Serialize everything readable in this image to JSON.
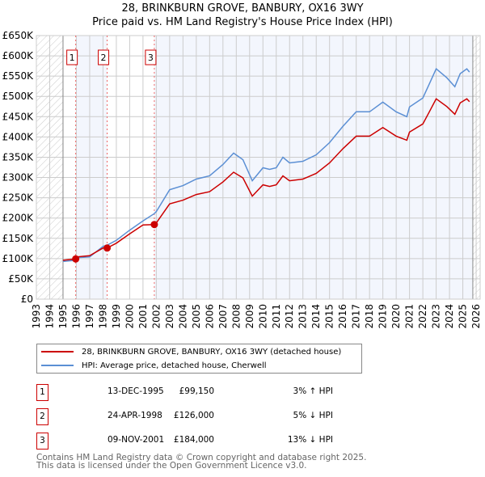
{
  "title_line1": "28, BRINKBURN GROVE, BANBURY, OX16 3WY",
  "title_line2": "Price paid vs. HM Land Registry's House Price Index (HPI)",
  "chart_data": {
    "type": "line",
    "xlim": [
      1993,
      2026.3
    ],
    "ylim": [
      0,
      650000
    ],
    "x_ticks": [
      1993,
      1994,
      1995,
      1996,
      1997,
      1998,
      1999,
      2000,
      2001,
      2002,
      2003,
      2004,
      2005,
      2006,
      2007,
      2008,
      2009,
      2010,
      2011,
      2012,
      2013,
      2014,
      2015,
      2016,
      2017,
      2018,
      2019,
      2020,
      2021,
      2022,
      2023,
      2024,
      2025,
      2026
    ],
    "y_ticks": [
      0,
      50000,
      100000,
      150000,
      200000,
      250000,
      300000,
      350000,
      400000,
      450000,
      500000,
      550000,
      600000,
      650000
    ],
    "y_tick_labels": [
      "£0",
      "£50K",
      "£100K",
      "£150K",
      "£200K",
      "£250K",
      "£300K",
      "£350K",
      "£400K",
      "£450K",
      "£500K",
      "£550K",
      "£600K",
      "£650K"
    ],
    "grid": true,
    "hatched_ranges": [
      [
        1993,
        1995
      ],
      [
        2025.75,
        2026.3
      ]
    ],
    "shaded_ranges": [
      [
        1995.95,
        1998.31
      ],
      [
        2001.85,
        2025.75
      ]
    ],
    "series": [
      {
        "name": "28, BRINKBURN GROVE, BANBURY, OX16 3WY (detached house)",
        "color": "#cc0000",
        "x": [
          1995,
          1995.95,
          1996,
          1997,
          1998,
          1998.31,
          1999,
          2000,
          2001,
          2001.85,
          2002,
          2003,
          2004,
          2005,
          2006,
          2007,
          2007.8,
          2008.5,
          2009.2,
          2010,
          2010.5,
          2011,
          2011.5,
          2012,
          2013,
          2014,
          2015,
          2016,
          2017,
          2018,
          2019,
          2020,
          2020.8,
          2021,
          2022,
          2022.5,
          2023,
          2023.8,
          2024.4,
          2024.8,
          2025.3,
          2025.5
        ],
        "y": [
          96000,
          99150,
          104000,
          107000,
          126000,
          126000,
          138000,
          161000,
          183000,
          184000,
          188000,
          235000,
          244000,
          258000,
          265000,
          289000,
          313000,
          299000,
          254000,
          282000,
          278000,
          282000,
          304000,
          292000,
          296000,
          310000,
          336000,
          371000,
          402000,
          402000,
          423000,
          402000,
          392000,
          412000,
          432000,
          463000,
          494000,
          475000,
          456000,
          484000,
          494000,
          487000
        ]
      },
      {
        "name": "HPI: Average price, detached house, Cherwell",
        "color": "#5b8fd4",
        "x": [
          1995,
          1995.95,
          1996,
          1997,
          1998,
          1998.31,
          1999,
          2000,
          2001,
          2001.85,
          2002,
          2003,
          2004,
          2005,
          2006,
          2007,
          2007.8,
          2008.5,
          2009.2,
          2010,
          2010.5,
          2011,
          2011.5,
          2012,
          2013,
          2014,
          2015,
          2016,
          2017,
          2018,
          2019,
          2020,
          2020.8,
          2021,
          2022,
          2022.5,
          2023,
          2023.8,
          2024.4,
          2024.8,
          2025.3,
          2025.5
        ],
        "y": [
          93000,
          96000,
          102000,
          104000,
          130000,
          133000,
          145000,
          170000,
          193000,
          211000,
          216000,
          270000,
          280000,
          296000,
          304000,
          332000,
          360000,
          344000,
          292000,
          324000,
          320000,
          324000,
          350000,
          336000,
          340000,
          356000,
          386000,
          426000,
          462000,
          462000,
          486000,
          462000,
          450000,
          474000,
          496000,
          532000,
          568000,
          546000,
          524000,
          556000,
          568000,
          560000
        ]
      }
    ],
    "sales": [
      {
        "label": "1",
        "x": 1995.95,
        "y": 99150
      },
      {
        "label": "2",
        "x": 1998.31,
        "y": 126000
      },
      {
        "label": "3",
        "x": 2001.85,
        "y": 184000
      }
    ]
  },
  "legend": {
    "property": "28, BRINKBURN GROVE, BANBURY, OX16 3WY (detached house)",
    "hpi": "HPI: Average price, detached house, Cherwell"
  },
  "sales_table": [
    {
      "num": "1",
      "date": "13-DEC-1995",
      "price": "£99,150",
      "hpi": "3% ↑ HPI"
    },
    {
      "num": "2",
      "date": "24-APR-1998",
      "price": "£126,000",
      "hpi": "5% ↓ HPI"
    },
    {
      "num": "3",
      "date": "09-NOV-2001",
      "price": "£184,000",
      "hpi": "13% ↓ HPI"
    }
  ],
  "footer_line1": "Contains HM Land Registry data © Crown copyright and database right 2025.",
  "footer_line2": "This data is licensed under the Open Government Licence v3.0."
}
